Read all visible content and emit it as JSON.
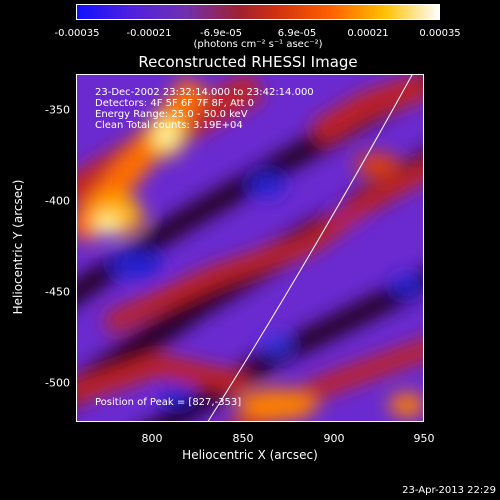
{
  "colorbar": {
    "ticks": [
      "-0.00035",
      "-0.00021",
      "-6.9e-05",
      "6.9e-05",
      "0.00021",
      "0.00035"
    ],
    "units": "(photons cm⁻² s⁻¹ asec⁻²)",
    "colors": [
      "#1010ff",
      "#6a2ad0",
      "#c02020",
      "#ff8000",
      "#ffff80",
      "#ffffff"
    ]
  },
  "title": "Reconstructed RHESSI Image",
  "info": {
    "time": "23-Dec-2002 23:32:14.000 to 23:42:14.000",
    "detectors": "Detectors: 4F 5F 6F 7F 8F, Att 0",
    "energy": "Energy Range: 25.0 - 50.0 keV",
    "algorithm": "Clean     Total counts: 3.19E+04",
    "peak": "Position of Peak = [827,-353]"
  },
  "axes": {
    "xlabel": "Heliocentric X (arcsec)",
    "ylabel": "Heliocentric Y (arcsec)",
    "xticks": [
      "800",
      "850",
      "900",
      "950"
    ],
    "yticks": [
      "-350",
      "-400",
      "-450",
      "-500"
    ]
  },
  "footer": "23-Apr-2013 22:29"
}
